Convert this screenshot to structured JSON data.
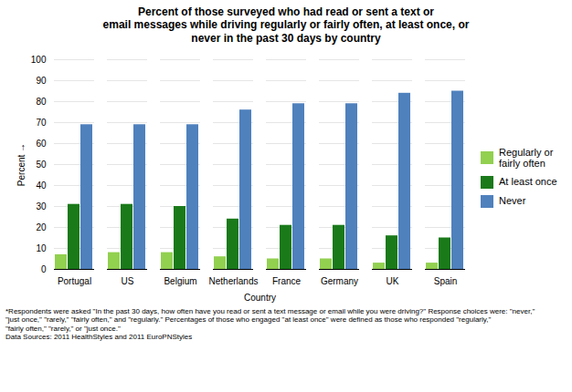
{
  "chart_data": {
    "type": "bar",
    "title": "Percent of those surveyed who had read or sent a text or\nemail messages while driving regularly or fairly often, at least once, or\nnever in the past 30 days by country",
    "xlabel": "Country",
    "ylabel": "Percent",
    "categories": [
      "Portugal",
      "US",
      "Belgium",
      "Netherlands",
      "France",
      "Germany",
      "UK",
      "Spain"
    ],
    "series": [
      {
        "name": "Regularly or\nfairly often",
        "color": "#92d050",
        "values": [
          7,
          8,
          8,
          6,
          5,
          5,
          3,
          3
        ]
      },
      {
        "name": "At least once",
        "color": "#1a7a1a",
        "values": [
          31,
          31,
          30,
          24,
          21,
          21,
          16,
          15
        ]
      },
      {
        "name": "Never",
        "color": "#4f81bd",
        "values": [
          69,
          69,
          69,
          76,
          79,
          79,
          84,
          85
        ]
      }
    ],
    "ylim": [
      0,
      100
    ],
    "yticks": [
      0,
      10,
      20,
      30,
      40,
      50,
      60,
      70,
      80,
      90,
      100
    ],
    "grid": true,
    "legend": "right",
    "annotations": [
      "*Respondents were asked \"In the past 30 days, how often have you read or sent a text message or email while you were driving?\" Response choices were: \"never,\"\n\"just once,\" \"rarely,\" \"fairly often,\" and \"regularly.\" Percentages of those who engaged \"at least once\" were defined as those who responded \"regularly,\"\n\"fairly often,\" \"rarely,\" or \"just once.\"\nData Sources: 2011 HealthStyles and 2011 EuroPNStyles"
    ]
  }
}
